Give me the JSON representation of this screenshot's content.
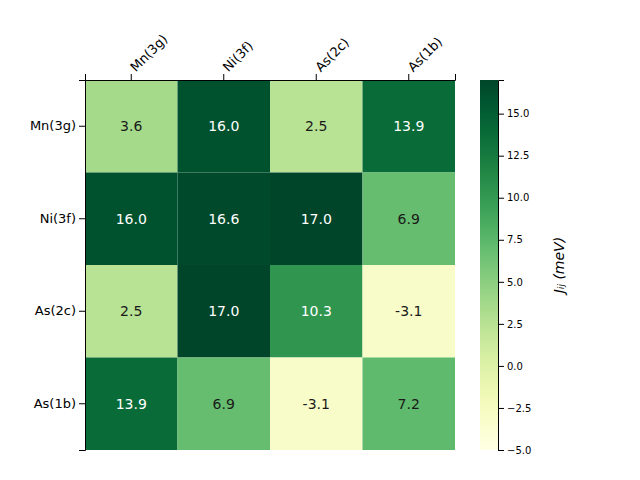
{
  "chart_data": {
    "type": "heatmap",
    "x": [
      "Mn(3g)",
      "Ni(3f)",
      "As(2c)",
      "As(1b)"
    ],
    "y": [
      "Mn(3g)",
      "Ni(3f)",
      "As(2c)",
      "As(1b)"
    ],
    "values": [
      [
        3.6,
        16.0,
        2.5,
        13.9
      ],
      [
        16.0,
        16.6,
        17.0,
        6.9
      ],
      [
        2.5,
        17.0,
        10.3,
        -3.1
      ],
      [
        13.9,
        6.9,
        -3.1,
        7.2
      ]
    ],
    "value_labels": [
      [
        "3.6",
        "16.0",
        "2.5",
        "13.9"
      ],
      [
        "16.0",
        "16.6",
        "17.0",
        "6.9"
      ],
      [
        "2.5",
        "17.0",
        "10.3",
        "-3.1"
      ],
      [
        "13.9",
        "6.9",
        "-3.1",
        "7.2"
      ]
    ],
    "data_labels": true,
    "colorbar_label": "Jᵢⱼ (meV)",
    "colorbar_lim": [
      -5.0,
      17.0
    ],
    "colorbar_ticks": [
      {
        "value": -5.0,
        "label": "−5.0"
      },
      {
        "value": -2.5,
        "label": "−2.5"
      },
      {
        "value": 0.0,
        "label": "0.0"
      },
      2.5,
      {
        "value": 5.0,
        "label": "5.0"
      },
      7.5,
      {
        "value": 10.0,
        "label": "10.0"
      },
      12.5,
      {
        "value": 15.0,
        "label": "15.0"
      }
    ]
  }
}
